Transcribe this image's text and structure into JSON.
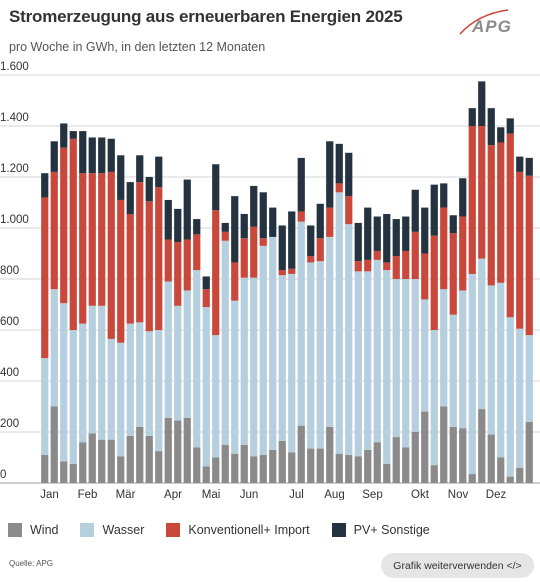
{
  "header": {
    "title": "Stromerzeugung aus erneuerbaren Energien 2025",
    "subtitle": "pro Woche in GWh, in den letzten 12 Monaten",
    "logo_text": "APG"
  },
  "footer": {
    "source": "Quelle: APG",
    "embed_label": "Grafik weiterverwenden </>"
  },
  "colors": {
    "Wind": "#8a8a8a",
    "Wasser": "#b5cfde",
    "Konventionell+ Import": "#c9483c",
    "PV+ Sonstige": "#253340",
    "grid": "#d4d4d4",
    "logo": "#c9483c"
  },
  "chart_data": {
    "type": "bar",
    "stacked": true,
    "title": "Stromerzeugung aus erneuerbaren Energien 2025",
    "subtitle": "pro Woche in GWh, in den letzten 12 Monaten",
    "ylim": [
      0,
      1600
    ],
    "yticks": [
      0,
      200,
      400,
      600,
      800,
      1000,
      1200,
      1400,
      1600
    ],
    "ytick_labels": [
      "0",
      "200",
      "400",
      "600",
      "800",
      "1.000",
      "1.200",
      "1.400",
      "1.600"
    ],
    "grid": true,
    "legend_position": "bottom",
    "month_labels": [
      {
        "label": "Jan",
        "week": 1
      },
      {
        "label": "Feb",
        "week": 5
      },
      {
        "label": "Mär",
        "week": 9
      },
      {
        "label": "Apr",
        "week": 14
      },
      {
        "label": "Mai",
        "week": 18
      },
      {
        "label": "Jun",
        "week": 22
      },
      {
        "label": "Jul",
        "week": 27
      },
      {
        "label": "Aug",
        "week": 31
      },
      {
        "label": "Sep",
        "week": 35
      },
      {
        "label": "Okt",
        "week": 40
      },
      {
        "label": "Nov",
        "week": 44
      },
      {
        "label": "Dez",
        "week": 48
      }
    ],
    "series": [
      {
        "name": "Wind",
        "values": [
          110,
          300,
          85,
          75,
          160,
          195,
          170,
          170,
          105,
          185,
          220,
          185,
          125,
          255,
          245,
          255,
          140,
          65,
          100,
          150,
          115,
          150,
          105,
          110,
          130,
          165,
          120,
          225,
          135,
          135,
          220,
          115,
          110,
          105,
          130,
          160,
          75,
          180,
          140,
          200,
          280,
          70,
          300,
          220,
          215,
          35,
          290,
          190,
          100,
          25,
          60,
          240
        ]
      },
      {
        "name": "Wasser",
        "values": [
          380,
          460,
          620,
          525,
          465,
          500,
          525,
          395,
          445,
          440,
          410,
          410,
          475,
          535,
          450,
          500,
          695,
          625,
          480,
          800,
          600,
          655,
          700,
          820,
          835,
          650,
          700,
          800,
          730,
          735,
          745,
          1025,
          905,
          725,
          700,
          715,
          760,
          620,
          660,
          600,
          440,
          530,
          460,
          440,
          540,
          785,
          590,
          585,
          685,
          625,
          545,
          340
        ]
      },
      {
        "name": "Konventionell+ Import",
        "values": [
          630,
          460,
          610,
          750,
          590,
          520,
          520,
          655,
          560,
          430,
          550,
          510,
          560,
          165,
          250,
          200,
          140,
          70,
          490,
          35,
          150,
          155,
          200,
          30,
          0,
          20,
          20,
          40,
          25,
          90,
          115,
          35,
          110,
          40,
          45,
          35,
          30,
          90,
          110,
          185,
          180,
          370,
          320,
          320,
          290,
          580,
          520,
          550,
          550,
          720,
          615,
          625
        ]
      },
      {
        "name": "PV+ Sonstige",
        "values": [
          95,
          120,
          95,
          30,
          165,
          140,
          140,
          130,
          175,
          125,
          105,
          95,
          120,
          155,
          130,
          235,
          60,
          50,
          180,
          35,
          260,
          95,
          160,
          180,
          115,
          175,
          225,
          210,
          120,
          135,
          260,
          155,
          170,
          150,
          205,
          135,
          190,
          145,
          135,
          165,
          180,
          200,
          95,
          70,
          150,
          70,
          175,
          145,
          60,
          60,
          60,
          70
        ]
      }
    ]
  }
}
